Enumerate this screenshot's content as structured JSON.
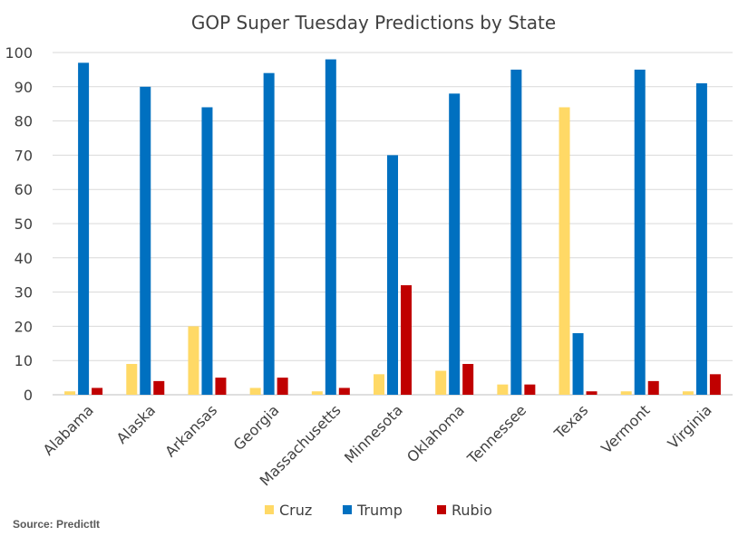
{
  "chart_data": {
    "type": "bar",
    "title": "GOP Super Tuesday Predictions by State",
    "xlabel": "",
    "ylabel": "",
    "ylim": [
      0,
      100
    ],
    "yticks": [
      0,
      10,
      20,
      30,
      40,
      50,
      60,
      70,
      80,
      90,
      100
    ],
    "grid": true,
    "legend_position": "bottom",
    "categories": [
      "Alabama",
      "Alaska",
      "Arkansas",
      "Georgia",
      "Massachusetts",
      "Minnesota",
      "Oklahoma",
      "Tennessee",
      "Texas",
      "Vermont",
      "Virginia"
    ],
    "series": [
      {
        "name": "Cruz",
        "color": "#FFD966",
        "values": [
          1,
          9,
          20,
          2,
          1,
          6,
          7,
          3,
          84,
          1,
          1
        ]
      },
      {
        "name": "Trump",
        "color": "#0070C0",
        "values": [
          97,
          90,
          84,
          94,
          98,
          70,
          88,
          95,
          18,
          95,
          91
        ]
      },
      {
        "name": "Rubio",
        "color": "#C00000",
        "values": [
          2,
          4,
          5,
          5,
          2,
          32,
          9,
          3,
          1,
          4,
          6
        ]
      }
    ]
  },
  "source": "Source: PredictIt"
}
